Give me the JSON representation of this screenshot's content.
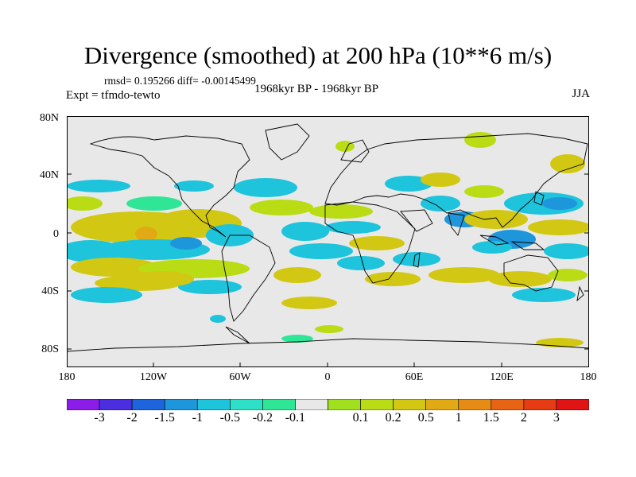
{
  "header": {
    "title": "Divergence (smoothed) at 200 hPa (10**6 m/s)",
    "stats": "rmsd= 0.195266 diff= -0.00145499",
    "experiment": "Expt = tfmdo-tewto",
    "period": "1968kyr BP - 1968kyr BP",
    "season": "JJA"
  },
  "map": {
    "projection": "cylindrical-equidistant",
    "background_color": "#e8e8e8",
    "lat_ticks": [
      "80N",
      "40N",
      "0",
      "40S",
      "80S"
    ],
    "lon_ticks": [
      "180",
      "120W",
      "60W",
      "0",
      "60E",
      "120E",
      "180"
    ]
  },
  "colorbar": {
    "colors": [
      "#8a1ee8",
      "#4a2ee0",
      "#1e64dc",
      "#1e96dc",
      "#1ec3dc",
      "#2ee0c8",
      "#2ee696",
      "#e8e8e8",
      "#a0e01e",
      "#b9dc14",
      "#d2c814",
      "#e1aa14",
      "#e68c14",
      "#e66414",
      "#e63c14",
      "#e01414"
    ],
    "labels": [
      "-3",
      "-2",
      "-1.5",
      "-1",
      "-0.5",
      "-0.2",
      "-0.1",
      "0.1",
      "0.2",
      "0.5",
      "1",
      "1.5",
      "2",
      "3"
    ]
  }
}
